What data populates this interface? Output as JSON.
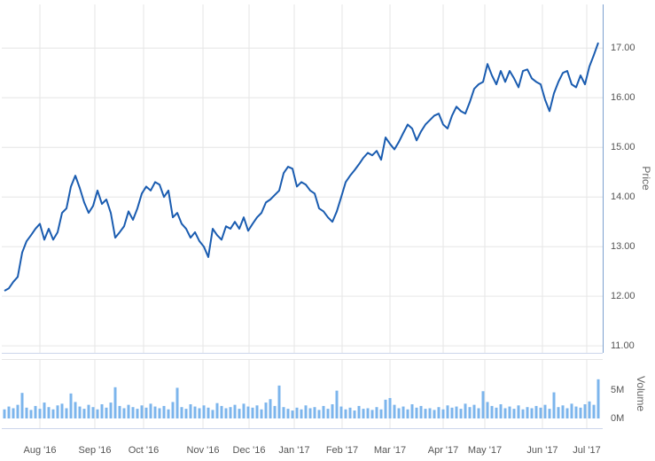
{
  "chart_data": [
    {
      "type": "line",
      "color": "#1a5cb0",
      "ylabel": "Price",
      "xlim": [
        -0.6,
        135
      ],
      "xticks": [
        {
          "value": 8,
          "label": "Aug '16"
        },
        {
          "value": 20.4,
          "label": "Sep '16"
        },
        {
          "value": 31.4,
          "label": "Oct '16"
        },
        {
          "value": 44.8,
          "label": "Nov '16"
        },
        {
          "value": 55.2,
          "label": "Dec '16"
        },
        {
          "value": 65.4,
          "label": "Jan '17"
        },
        {
          "value": 76.2,
          "label": "Feb '17"
        },
        {
          "value": 87,
          "label": "Mar '17"
        },
        {
          "value": 99,
          "label": "Apr '17"
        },
        {
          "value": 108.4,
          "label": "May '17"
        },
        {
          "value": 121.4,
          "label": "Jun '17"
        },
        {
          "value": 131.4,
          "label": "Jul '17"
        }
      ],
      "ylim": [
        10.86,
        17.88
      ],
      "yticks": [
        {
          "value": 11,
          "label": "11.00"
        },
        {
          "value": 12,
          "label": "12.00"
        },
        {
          "value": 13,
          "label": "13.00"
        },
        {
          "value": 14,
          "label": "14.00"
        },
        {
          "value": 15,
          "label": "15.00"
        },
        {
          "value": 16,
          "label": "16.00"
        },
        {
          "value": 17,
          "label": "17.00"
        }
      ],
      "grid": true,
      "values": [
        12.11,
        12.16,
        12.29,
        12.39,
        12.88,
        13.11,
        13.23,
        13.36,
        13.46,
        13.14,
        13.36,
        13.14,
        13.29,
        13.68,
        13.77,
        14.21,
        14.43,
        14.18,
        13.89,
        13.68,
        13.82,
        14.13,
        13.86,
        13.95,
        13.68,
        13.18,
        13.29,
        13.41,
        13.71,
        13.54,
        13.77,
        14.07,
        14.21,
        14.13,
        14.3,
        14.25,
        14.0,
        14.13,
        13.59,
        13.68,
        13.46,
        13.36,
        13.18,
        13.29,
        13.11,
        13.0,
        12.79,
        13.36,
        13.23,
        13.14,
        13.41,
        13.36,
        13.5,
        13.36,
        13.59,
        13.32,
        13.46,
        13.59,
        13.68,
        13.89,
        13.95,
        14.04,
        14.13,
        14.48,
        14.61,
        14.57,
        14.21,
        14.3,
        14.25,
        14.13,
        14.07,
        13.77,
        13.71,
        13.59,
        13.5,
        13.71,
        14.0,
        14.3,
        14.43,
        14.54,
        14.66,
        14.79,
        14.89,
        14.84,
        14.93,
        14.75,
        15.2,
        15.07,
        14.96,
        15.11,
        15.29,
        15.46,
        15.38,
        15.14,
        15.32,
        15.46,
        15.55,
        15.64,
        15.68,
        15.46,
        15.38,
        15.64,
        15.82,
        15.73,
        15.68,
        15.91,
        16.18,
        16.27,
        16.32,
        16.68,
        16.45,
        16.27,
        16.54,
        16.32,
        16.54,
        16.39,
        16.21,
        16.54,
        16.57,
        16.39,
        16.32,
        16.27,
        15.96,
        15.73,
        16.09,
        16.32,
        16.5,
        16.54,
        16.27,
        16.21,
        16.45,
        16.27,
        16.63,
        16.86,
        17.11
      ]
    },
    {
      "type": "bar",
      "color": "#7cb5ec",
      "ylabel": "Volume",
      "ylim": [
        -1.72,
        10.47
      ],
      "yticks": [
        {
          "value": 0,
          "label": "0M"
        },
        {
          "value": 5,
          "label": "5M"
        }
      ],
      "values": [
        1.6,
        2.1,
        1.8,
        2.4,
        4.5,
        1.9,
        1.5,
        2.2,
        1.7,
        2.8,
        2.0,
        1.6,
        2.3,
        2.6,
        1.8,
        4.4,
        2.9,
        2.1,
        1.7,
        2.4,
        2.0,
        1.6,
        2.5,
        1.9,
        2.8,
        5.5,
        2.2,
        1.8,
        2.4,
        2.0,
        1.7,
        2.3,
        1.9,
        2.6,
        2.1,
        1.8,
        2.2,
        1.6,
        2.9,
        5.4,
        2.0,
        1.7,
        2.5,
        2.1,
        1.8,
        2.3,
        1.9,
        1.5,
        2.7,
        2.2,
        1.8,
        2.0,
        2.4,
        1.7,
        2.6,
        2.1,
        1.9,
        2.3,
        1.6,
        2.8,
        3.4,
        2.2,
        5.8,
        2.0,
        1.7,
        1.4,
        1.9,
        1.6,
        2.3,
        1.8,
        2.0,
        1.5,
        2.2,
        1.7,
        2.5,
        4.9,
        2.1,
        1.6,
        1.9,
        1.4,
        2.2,
        1.7,
        1.8,
        1.5,
        2.0,
        1.6,
        3.3,
        3.6,
        2.4,
        1.8,
        2.1,
        1.6,
        2.5,
        1.9,
        2.2,
        1.7,
        1.8,
        1.5,
        2.0,
        1.6,
        2.3,
        1.9,
        2.1,
        1.7,
        2.6,
        2.0,
        2.4,
        1.8,
        4.8,
        2.9,
        2.2,
        1.9,
        2.5,
        1.8,
        2.1,
        1.7,
        2.3,
        1.6,
        2.0,
        1.8,
        2.2,
        1.9,
        2.4,
        1.7,
        4.6,
        2.0,
        2.3,
        1.8,
        2.6,
        2.1,
        1.9,
        2.5,
        3.0,
        2.4,
        6.9
      ]
    }
  ]
}
